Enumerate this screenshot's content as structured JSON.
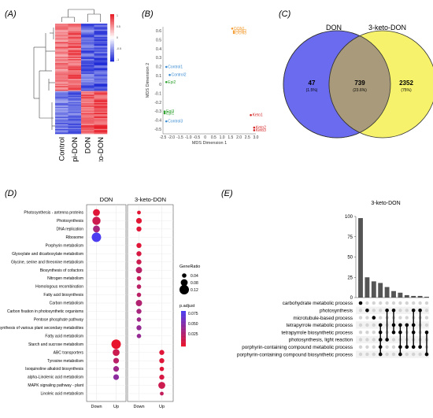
{
  "panels": {
    "a": {
      "label": "(A)"
    },
    "b": {
      "label": "(B)"
    },
    "c": {
      "label": "(C)"
    },
    "d": {
      "label": "(D)"
    },
    "e": {
      "label": "(E)"
    }
  },
  "heatmap": {
    "columns": [
      "Control",
      "3-epi-DON",
      "DON",
      "3-keto-DON"
    ],
    "legend_ticks": [
      "1",
      "0.5",
      "0",
      "-0.5",
      "-1"
    ],
    "colors": {
      "high": "#e8202a",
      "mid": "#ffffff",
      "low": "#1f2bd6"
    }
  },
  "chart_data": [
    {
      "type": "scatter",
      "panel": "B",
      "xlabel": "MDS Dimension 1",
      "ylabel": "MDS Dimension 2",
      "xlim": [
        -2.5,
        3.0
      ],
      "ylim": [
        -0.55,
        0.65
      ],
      "xticks": [
        "-2.5",
        "-2.0",
        "-1.5",
        "-1.0",
        "-0.5",
        "0",
        "0.5",
        "1.0",
        "1.5",
        "2.0",
        "2.5",
        "3.0"
      ],
      "yticks": [
        "0.6",
        "0.5",
        "0.4",
        "0.3",
        "0.2",
        "0.1",
        "0",
        "-0.1",
        "-0.2",
        "-0.3",
        "-0.4",
        "-0.5"
      ],
      "points": [
        {
          "label": "DON1",
          "x": 1.6,
          "y": 0.63,
          "color": "#f39c32"
        },
        {
          "label": "DON2",
          "x": 1.7,
          "y": 0.6,
          "color": "#f39c32"
        },
        {
          "label": "DON3",
          "x": 1.7,
          "y": 0.58,
          "color": "#f39c32"
        },
        {
          "label": "Control1",
          "x": -2.3,
          "y": 0.2,
          "color": "#3a8bd1"
        },
        {
          "label": "Control2",
          "x": -2.1,
          "y": 0.11,
          "color": "#3a8bd1"
        },
        {
          "label": "Epi2",
          "x": -2.3,
          "y": 0.03,
          "color": "#2ca02c"
        },
        {
          "label": "Epi3",
          "x": -2.4,
          "y": -0.3,
          "color": "#2ca02c"
        },
        {
          "label": "Epi1",
          "x": -2.4,
          "y": -0.32,
          "color": "#2ca02c"
        },
        {
          "label": "Control3",
          "x": -2.3,
          "y": -0.41,
          "color": "#3a8bd1"
        },
        {
          "label": "Keto1",
          "x": 2.7,
          "y": -0.34,
          "color": "#d62728"
        },
        {
          "label": "Keto2",
          "x": 2.9,
          "y": -0.48,
          "color": "#d62728"
        },
        {
          "label": "Keto3",
          "x": 2.9,
          "y": -0.51,
          "color": "#d62728"
        }
      ]
    },
    {
      "type": "venn",
      "panel": "C",
      "sets": [
        {
          "name": "DON",
          "only": "47",
          "only_pct": "(1.5%)",
          "color": "#6b6bf0"
        },
        {
          "name": "3-keto-DON",
          "only": "2352",
          "only_pct": "(75%)",
          "color": "#f6f26b"
        }
      ],
      "overlap": {
        "value": "739",
        "pct": "(23.6%)",
        "color": "#a89a7a"
      }
    },
    {
      "type": "scatter",
      "panel": "D",
      "facets": [
        "DON",
        "3-keto-DON"
      ],
      "x_categories": [
        "Down",
        "Up"
      ],
      "terms": [
        "Photosynthesis - antenna proteins",
        "Photosynthesis",
        "DNA replication",
        "Ribosome",
        "Porphyrin metabolism",
        "Glyoxylate and dicarboxylate metabolism",
        "Glycine, serine and threonine metabolism",
        "Biosynthesis of cofactors",
        "Nitrogen metabolism",
        "Homologous recombination",
        "Fatty acid biosynthesis",
        "Carbon metabolism",
        "Carbon fixation in photosynthetic organisms",
        "Pentose phosphate pathway",
        "Biosynthesis of various plant secondary metabolites",
        "Fatty acid metabolism",
        "Starch and sucrose metabolism",
        "ABC transporters",
        "Tyrosine metabolism",
        "Isoquinoline alkaloid biosynthesis",
        "alpha-Linolenic acid metabolism",
        "MAPK signaling pathway - plant",
        "Linoleic acid metabolism"
      ],
      "legend": {
        "size_title": "GeneRatio",
        "size_ticks": [
          "0.04",
          "0.08",
          "0.12"
        ],
        "color_title": "p.adjust",
        "color_ticks": [
          "0.075",
          "0.050",
          "0.025"
        ]
      },
      "dots": [
        {
          "facet": 0,
          "x": 0,
          "term": 0,
          "size": 0.08,
          "p": 0.01
        },
        {
          "facet": 0,
          "x": 0,
          "term": 1,
          "size": 0.1,
          "p": 0.02
        },
        {
          "facet": 0,
          "x": 0,
          "term": 2,
          "size": 0.08,
          "p": 0.04
        },
        {
          "facet": 0,
          "x": 0,
          "term": 3,
          "size": 0.12,
          "p": 0.09
        },
        {
          "facet": 0,
          "x": 1,
          "term": 16,
          "size": 0.12,
          "p": 0.005
        },
        {
          "facet": 0,
          "x": 1,
          "term": 17,
          "size": 0.08,
          "p": 0.02
        },
        {
          "facet": 0,
          "x": 1,
          "term": 18,
          "size": 0.06,
          "p": 0.03
        },
        {
          "facet": 0,
          "x": 1,
          "term": 19,
          "size": 0.06,
          "p": 0.045
        },
        {
          "facet": 0,
          "x": 1,
          "term": 20,
          "size": 0.06,
          "p": 0.055
        },
        {
          "facet": 1,
          "x": 0,
          "term": 0,
          "size": 0.03,
          "p": 0.008
        },
        {
          "facet": 1,
          "x": 0,
          "term": 1,
          "size": 0.06,
          "p": 0.008
        },
        {
          "facet": 1,
          "x": 0,
          "term": 2,
          "size": 0.05,
          "p": 0.01
        },
        {
          "facet": 1,
          "x": 0,
          "term": 4,
          "size": 0.05,
          "p": 0.01
        },
        {
          "facet": 1,
          "x": 0,
          "term": 5,
          "size": 0.05,
          "p": 0.015
        },
        {
          "facet": 1,
          "x": 0,
          "term": 6,
          "size": 0.05,
          "p": 0.02
        },
        {
          "facet": 1,
          "x": 0,
          "term": 7,
          "size": 0.07,
          "p": 0.03
        },
        {
          "facet": 1,
          "x": 0,
          "term": 8,
          "size": 0.04,
          "p": 0.025
        },
        {
          "facet": 1,
          "x": 0,
          "term": 9,
          "size": 0.04,
          "p": 0.03
        },
        {
          "facet": 1,
          "x": 0,
          "term": 10,
          "size": 0.04,
          "p": 0.03
        },
        {
          "facet": 1,
          "x": 0,
          "term": 11,
          "size": 0.07,
          "p": 0.035
        },
        {
          "facet": 1,
          "x": 0,
          "term": 12,
          "size": 0.05,
          "p": 0.04
        },
        {
          "facet": 1,
          "x": 0,
          "term": 13,
          "size": 0.04,
          "p": 0.045
        },
        {
          "facet": 1,
          "x": 0,
          "term": 14,
          "size": 0.05,
          "p": 0.05
        },
        {
          "facet": 1,
          "x": 0,
          "term": 15,
          "size": 0.04,
          "p": 0.05
        },
        {
          "facet": 1,
          "x": 1,
          "term": 17,
          "size": 0.05,
          "p": 0.01
        },
        {
          "facet": 1,
          "x": 1,
          "term": 18,
          "size": 0.05,
          "p": 0.01
        },
        {
          "facet": 1,
          "x": 1,
          "term": 19,
          "size": 0.04,
          "p": 0.01
        },
        {
          "facet": 1,
          "x": 1,
          "term": 20,
          "size": 0.05,
          "p": 0.015
        },
        {
          "facet": 1,
          "x": 1,
          "term": 21,
          "size": 0.08,
          "p": 0.02
        },
        {
          "facet": 1,
          "x": 1,
          "term": 22,
          "size": 0.03,
          "p": 0.025
        }
      ]
    },
    {
      "type": "bar",
      "panel": "E",
      "title": "3-keto-DON",
      "ylim": [
        0,
        100
      ],
      "yticks": [
        "0",
        "25",
        "50",
        "75",
        "100"
      ],
      "values": [
        98,
        25,
        20,
        18,
        13,
        8,
        6,
        3,
        2,
        2,
        1
      ],
      "sets": [
        "carbohydrate metabolic process",
        "photosynthesis",
        "microtubule-based process",
        "tetrapyrrole metabolic process",
        "tetrapyrrole biosynthetic process",
        "photosynthesis, light reaction",
        "porphyrin-containing compound metabolic process",
        "porphyrin-containing compound biosynthetic process"
      ],
      "intersections": [
        [
          0
        ],
        [
          1
        ],
        [
          2
        ],
        [
          3,
          4,
          5,
          6,
          7
        ],
        [
          1,
          5
        ],
        [
          1,
          3,
          4
        ],
        [
          3,
          4,
          6,
          7
        ],
        [
          3,
          6
        ],
        [
          1,
          3,
          4,
          6
        ],
        [
          1,
          6
        ],
        [
          4,
          7
        ]
      ]
    }
  ]
}
